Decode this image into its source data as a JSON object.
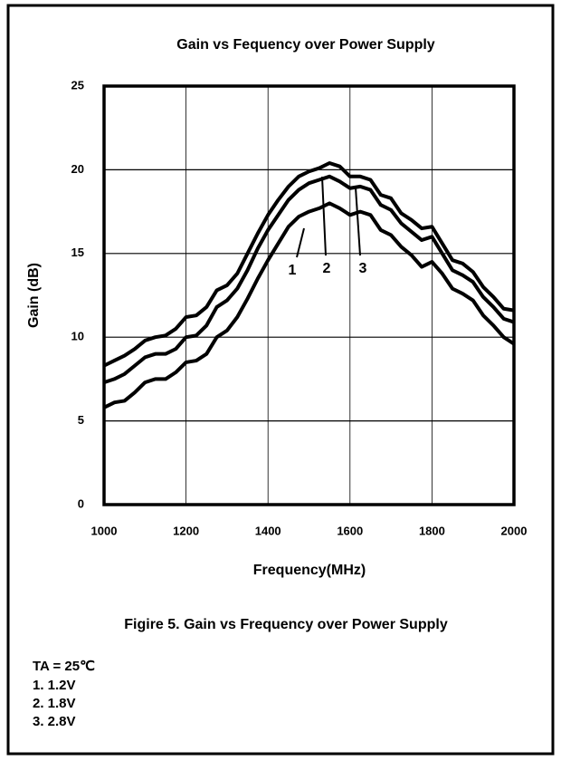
{
  "chart_data": {
    "type": "line",
    "title": "Gain vs Fequency over Power Supply",
    "xlabel": "Frequency(MHz)",
    "ylabel": "Gain (dB)",
    "x": [
      1000,
      1025,
      1050,
      1075,
      1100,
      1125,
      1150,
      1175,
      1200,
      1225,
      1250,
      1275,
      1300,
      1325,
      1350,
      1375,
      1400,
      1425,
      1450,
      1475,
      1500,
      1525,
      1550,
      1575,
      1600,
      1625,
      1650,
      1675,
      1700,
      1725,
      1750,
      1775,
      1800,
      1825,
      1850,
      1875,
      1900,
      1925,
      1950,
      1975,
      2000
    ],
    "series": [
      {
        "name": "1",
        "color": "#000000",
        "values": [
          5.8,
          6.1,
          6.2,
          6.7,
          7.3,
          7.5,
          7.5,
          7.9,
          8.5,
          8.6,
          9.0,
          10.0,
          10.4,
          11.2,
          12.3,
          13.5,
          14.6,
          15.6,
          16.6,
          17.2,
          17.5,
          17.7,
          18.0,
          17.7,
          17.3,
          17.5,
          17.3,
          16.4,
          16.1,
          15.4,
          14.9,
          14.2,
          14.5,
          13.8,
          12.9,
          12.6,
          12.2,
          11.3,
          10.7,
          10.0,
          9.6
        ]
      },
      {
        "name": "2",
        "color": "#000000",
        "values": [
          7.3,
          7.5,
          7.8,
          8.3,
          8.8,
          9.0,
          9.0,
          9.3,
          10.0,
          10.1,
          10.7,
          11.8,
          12.2,
          12.9,
          14.0,
          15.3,
          16.4,
          17.3,
          18.2,
          18.8,
          19.2,
          19.4,
          19.6,
          19.3,
          18.9,
          19.0,
          18.8,
          17.9,
          17.6,
          16.8,
          16.3,
          15.8,
          16.0,
          15.0,
          14.0,
          13.7,
          13.3,
          12.4,
          11.8,
          11.1,
          10.9
        ]
      },
      {
        "name": "3",
        "color": "#000000",
        "values": [
          8.3,
          8.6,
          8.9,
          9.3,
          9.8,
          10.0,
          10.1,
          10.5,
          11.2,
          11.3,
          11.8,
          12.8,
          13.1,
          13.8,
          15.0,
          16.2,
          17.3,
          18.2,
          19.0,
          19.6,
          19.9,
          20.1,
          20.4,
          20.2,
          19.6,
          19.6,
          19.4,
          18.5,
          18.3,
          17.4,
          17.0,
          16.5,
          16.6,
          15.6,
          14.6,
          14.4,
          13.9,
          13.0,
          12.4,
          11.7,
          11.6
        ]
      }
    ],
    "xlim": [
      1000,
      2000
    ],
    "xticks": [
      1000,
      1200,
      1400,
      1600,
      1800,
      2000
    ],
    "ylim": [
      0,
      25
    ],
    "yticks": [
      0,
      5,
      10,
      15,
      20,
      25
    ],
    "grid": true
  },
  "caption": "Figire 5. Gain vs Frequency over Power Supply",
  "notes": [
    "TA = 25℃",
    "1.  1.2V",
    "2.  1.8V",
    "3.  2.8V"
  ]
}
